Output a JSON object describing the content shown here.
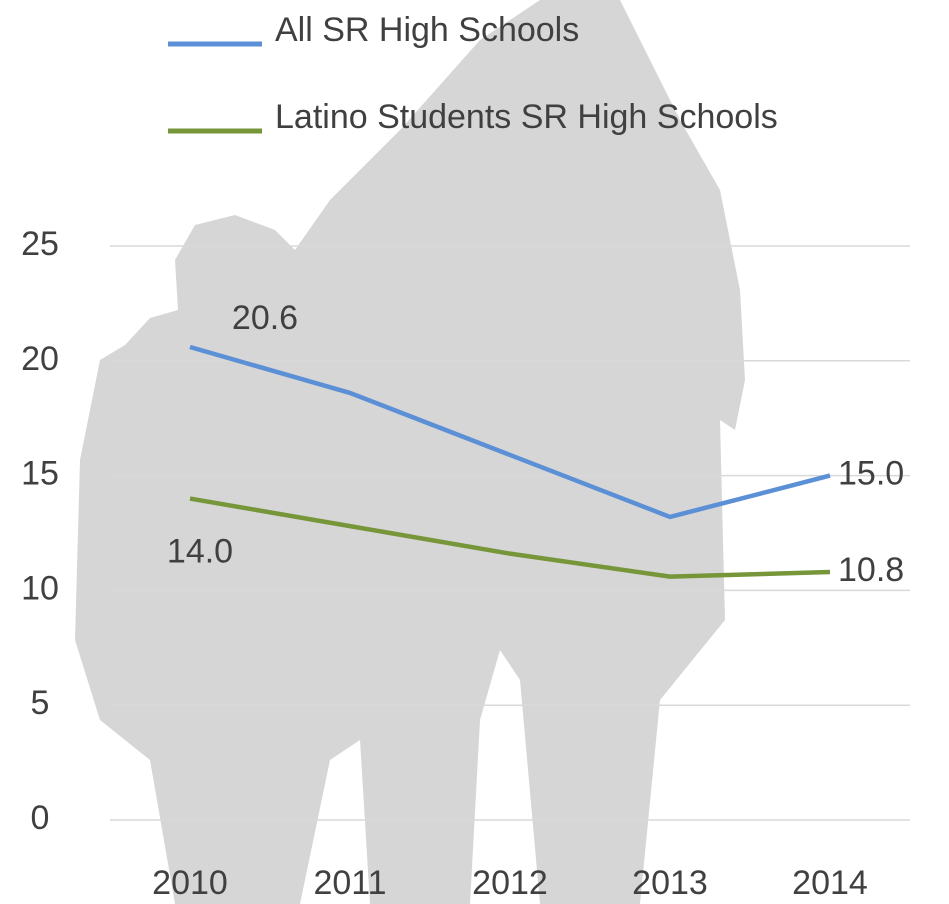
{
  "chart_data": {
    "type": "line",
    "categories": [
      "2010",
      "2011",
      "2012",
      "2013",
      "2014"
    ],
    "series": [
      {
        "name": "All SR High Schools",
        "color": "#5b8fd6",
        "values": [
          20.6,
          18.6,
          15.9,
          13.2,
          15.0
        ],
        "value_labels": [
          "20.6",
          null,
          null,
          null,
          "15.0"
        ]
      },
      {
        "name": "Latino Students SR High Schools",
        "color": "#77963a",
        "values": [
          14.0,
          12.8,
          11.6,
          10.6,
          10.8
        ],
        "value_labels": [
          "14.0",
          null,
          null,
          null,
          "10.8"
        ]
      }
    ],
    "ylim": [
      0,
      25
    ],
    "yticks": [
      0,
      5,
      10,
      15,
      20,
      25
    ],
    "grid": true
  }
}
